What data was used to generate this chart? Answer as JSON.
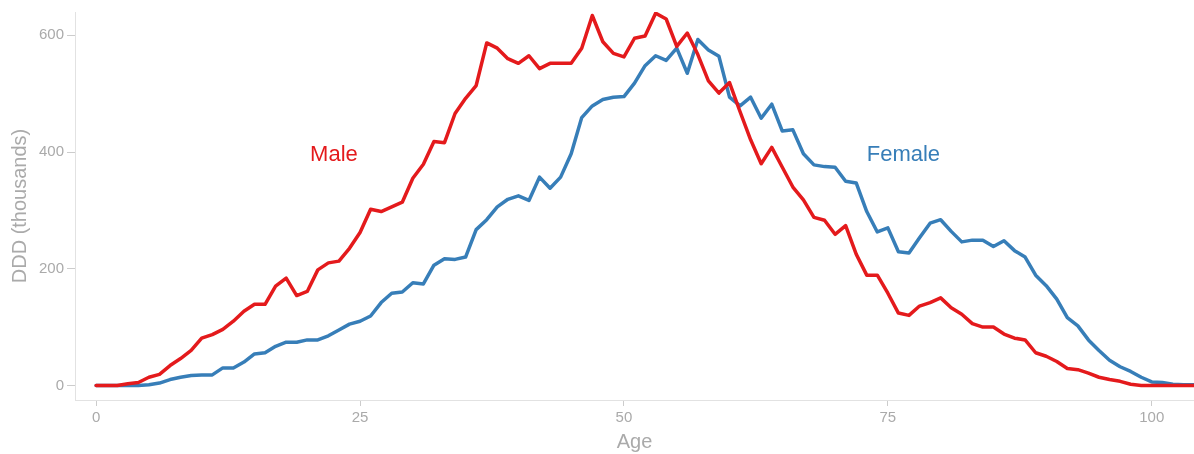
{
  "chart_data": {
    "type": "line",
    "xlabel": "Age",
    "ylabel": "DDD (thousands)",
    "x": [
      0,
      1,
      2,
      3,
      4,
      5,
      6,
      7,
      8,
      9,
      10,
      11,
      12,
      13,
      14,
      15,
      16,
      17,
      18,
      19,
      20,
      21,
      22,
      23,
      24,
      25,
      26,
      27,
      28,
      29,
      30,
      31,
      32,
      33,
      34,
      35,
      36,
      37,
      38,
      39,
      40,
      41,
      42,
      43,
      44,
      45,
      46,
      47,
      48,
      49,
      50,
      51,
      52,
      53,
      54,
      55,
      56,
      57,
      58,
      59,
      60,
      61,
      62,
      63,
      64,
      65,
      66,
      67,
      68,
      69,
      70,
      71,
      72,
      73,
      74,
      75,
      76,
      77,
      78,
      79,
      80,
      81,
      82,
      83,
      84,
      85,
      86,
      87,
      88,
      89,
      90,
      91,
      92,
      93,
      94,
      95,
      96,
      97,
      98,
      99,
      100,
      101,
      102,
      103,
      104
    ],
    "series": [
      {
        "name": "Male",
        "color": "#e41a1c",
        "values": [
          0,
          0,
          0,
          3,
          5,
          14,
          19,
          34,
          46,
          60,
          81,
          87,
          96,
          110,
          127,
          139,
          139,
          170,
          184,
          154,
          161,
          198,
          210,
          213,
          235,
          262,
          302,
          298,
          306,
          314,
          355,
          379,
          418,
          416,
          466,
          492,
          514,
          587,
          578,
          560,
          552,
          565,
          543,
          552,
          552,
          552,
          578,
          634,
          589,
          569,
          563,
          595,
          599,
          638,
          628,
          581,
          604,
          567,
          522,
          501,
          519,
          469,
          421,
          380,
          408,
          374,
          340,
          318,
          288,
          283,
          259,
          274,
          225,
          189,
          189,
          158,
          124,
          120,
          136,
          142,
          150,
          133,
          122,
          106,
          100,
          100,
          88,
          81,
          78,
          56,
          50,
          41,
          29,
          27,
          21,
          14,
          10,
          7,
          2,
          0,
          0,
          0,
          0,
          0,
          0
        ]
      },
      {
        "name": "Female",
        "color": "#377eb8",
        "values": [
          0,
          0,
          0,
          0,
          0,
          1,
          4,
          10,
          14,
          17,
          18,
          18,
          30,
          30,
          40,
          54,
          56,
          67,
          74,
          74,
          78,
          78,
          85,
          95,
          105,
          110,
          119,
          142,
          158,
          160,
          176,
          174,
          206,
          217,
          216,
          220,
          267,
          284,
          306,
          319,
          325,
          317,
          357,
          338,
          357,
          397,
          459,
          479,
          490,
          494,
          495,
          518,
          548,
          565,
          557,
          578,
          535,
          593,
          575,
          564,
          494,
          479,
          494,
          458,
          482,
          436,
          438,
          397,
          378,
          375,
          374,
          350,
          347,
          298,
          263,
          270,
          229,
          227,
          253,
          278,
          284,
          264,
          246,
          249,
          249,
          238,
          248,
          231,
          220,
          189,
          171,
          148,
          116,
          102,
          78,
          60,
          43,
          32,
          24,
          14,
          6,
          5,
          2,
          1,
          1
        ]
      }
    ],
    "xlim": [
      -2,
      104
    ],
    "xticks": [
      0,
      25,
      50,
      75,
      100
    ],
    "ylim": [
      -25,
      640
    ],
    "yticks": [
      0,
      200,
      400,
      600
    ],
    "grid": false,
    "legend": false,
    "marker": "none",
    "line_style": "solid"
  }
}
